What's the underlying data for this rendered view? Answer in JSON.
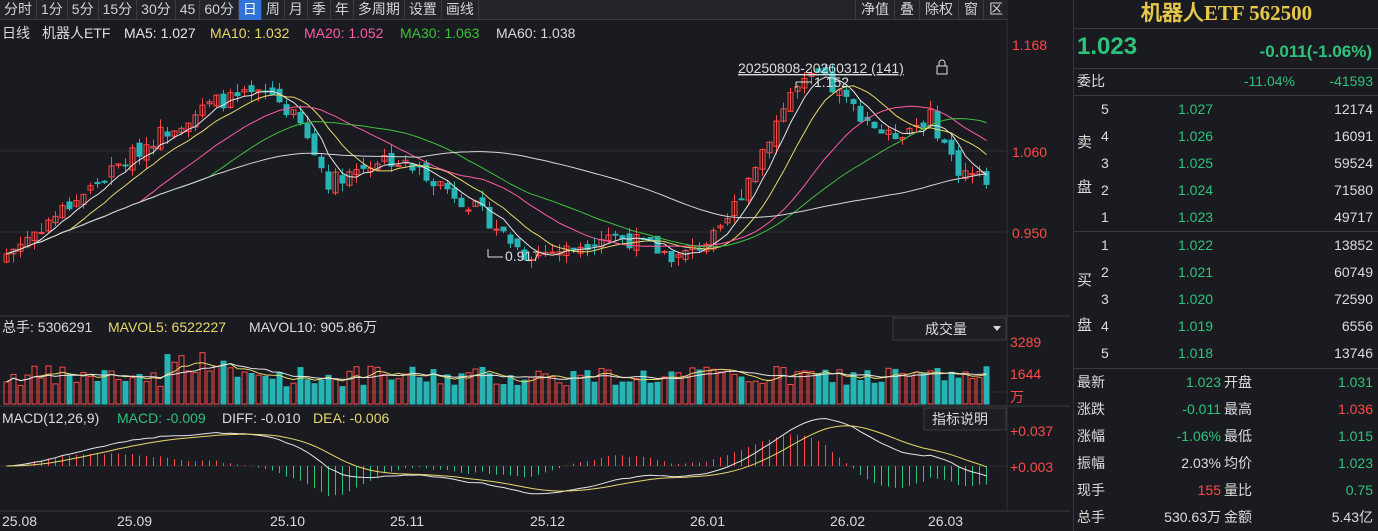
{
  "toolbar": {
    "periods": [
      "分时",
      "1分",
      "5分",
      "15分",
      "30分",
      "45",
      "60分",
      "日",
      "周",
      "月",
      "季",
      "年",
      "多周期",
      "设置",
      "画线"
    ],
    "active_period": "日",
    "tools": [
      "净值",
      "叠",
      "除权",
      "窗",
      "区"
    ]
  },
  "main_chart": {
    "legend": {
      "period": "日线",
      "name": "机器人ETF",
      "ma5": "MA5: 1.027",
      "ma10": "MA10: 1.032",
      "ma20": "MA20: 1.052",
      "ma30": "MA30: 1.063",
      "ma60": "MA60: 1.038"
    },
    "axis_labels": [
      "1.168",
      "1.060",
      "0.950"
    ],
    "range_label": "20250808-20260312 (141)",
    "high_marker": "1.152",
    "low_marker": "0.917",
    "price_min": 0.86,
    "price_max": 1.19
  },
  "volume_chart": {
    "legend": {
      "total": "总手: 5306291",
      "mavol5": "MAVOL5: 6522227",
      "mavol10": "MAVOL10: 905.86万"
    },
    "dropdown": "成交量",
    "axis_labels": [
      "3289",
      "1644",
      "万"
    ]
  },
  "macd_chart": {
    "legend": {
      "name": "MACD(12,26,9)",
      "macd": "MACD: -0.009",
      "diff": "DIFF: -0.010",
      "dea": "DEA: -0.006"
    },
    "button": "指标说明",
    "axis_labels": [
      "+0.037",
      "+0.003"
    ]
  },
  "x_axis": [
    "25.08",
    "25.09",
    "25.10",
    "25.11",
    "25.12",
    "26.01",
    "26.02",
    "26.03"
  ],
  "colors": {
    "up": "#ff4848",
    "down": "#26b4b4",
    "ma5": "#e6e6e6",
    "ma10": "#e8d86a",
    "ma20": "#ff5aa0",
    "ma30": "#3cc03c",
    "ma60": "#d8d8d8"
  },
  "panel": {
    "title": "机器人ETF 562500",
    "price": "1.023",
    "change": "-0.011(-1.06%)",
    "weibi": {
      "label": "委比",
      "pct": "-11.04%",
      "diff": "-41593"
    },
    "sell_label": [
      "卖",
      "盘"
    ],
    "buy_label": [
      "买",
      "盘"
    ],
    "asks": [
      {
        "level": "5",
        "price": "1.027",
        "volume": "12174"
      },
      {
        "level": "4",
        "price": "1.026",
        "volume": "16091"
      },
      {
        "level": "3",
        "price": "1.025",
        "volume": "59524"
      },
      {
        "level": "2",
        "price": "1.024",
        "volume": "71580"
      },
      {
        "level": "1",
        "price": "1.023",
        "volume": "49717"
      }
    ],
    "bids": [
      {
        "level": "1",
        "price": "1.022",
        "volume": "13852"
      },
      {
        "level": "2",
        "price": "1.021",
        "volume": "60749"
      },
      {
        "level": "3",
        "price": "1.020",
        "volume": "72590"
      },
      {
        "level": "4",
        "price": "1.019",
        "volume": "6556"
      },
      {
        "level": "5",
        "price": "1.018",
        "volume": "13746"
      }
    ],
    "stats": [
      {
        "l1": "最新",
        "v1": "1.023",
        "c1": "green",
        "l2": "开盘",
        "v2": "1.031",
        "c2": "green"
      },
      {
        "l1": "涨跌",
        "v1": "-0.011",
        "c1": "green",
        "l2": "最高",
        "v2": "1.036",
        "c2": "red"
      },
      {
        "l1": "涨幅",
        "v1": "-1.06%",
        "c1": "green",
        "l2": "最低",
        "v2": "1.015",
        "c2": "green"
      },
      {
        "l1": "振幅",
        "v1": "2.03%",
        "c1": "white",
        "l2": "均价",
        "v2": "1.023",
        "c2": "green"
      },
      {
        "l1": "现手",
        "v1": "155",
        "c1": "red",
        "l2": "量比",
        "v2": "0.75",
        "c2": "green"
      },
      {
        "l1": "总手",
        "v1": "530.63万",
        "c1": "white",
        "l2": "金额",
        "v2": "5.43亿",
        "c2": "white"
      }
    ]
  }
}
